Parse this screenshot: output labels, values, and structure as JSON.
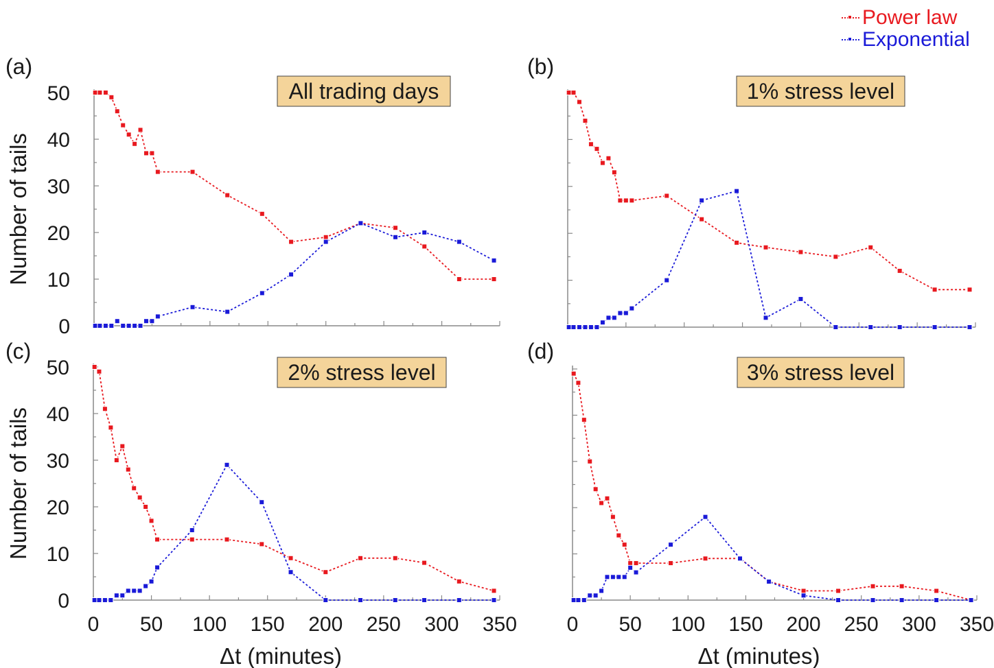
{
  "legend": {
    "items": [
      {
        "label": "Power law",
        "color": "#e8191f"
      },
      {
        "label": "Exponential",
        "color": "#1a1ad8"
      }
    ]
  },
  "colors": {
    "power": "#e8191f",
    "exponential": "#1a1ad8",
    "box_fill": "#f4d49a",
    "box_border": "#444444"
  },
  "chart_data": [
    {
      "type": "line",
      "panel_label": "(a)",
      "title": "All trading days",
      "xlabel": "",
      "ylabel": "Number of tails",
      "xlim": [
        0,
        350
      ],
      "ylim": [
        0,
        50
      ],
      "xticks": [
        0,
        50,
        100,
        150,
        200,
        250,
        300,
        350
      ],
      "show_xtick_labels": false,
      "yticks": [
        0,
        10,
        20,
        30,
        40,
        50
      ],
      "show_ytick_labels": true,
      "series": [
        {
          "name": "Power law",
          "color": "#e8191f",
          "x": [
            1,
            5,
            10,
            15,
            20,
            25,
            30,
            35,
            40,
            45,
            50,
            55,
            85,
            115,
            145,
            170,
            200,
            230,
            260,
            285,
            315,
            345
          ],
          "y": [
            50,
            50,
            50,
            49,
            46,
            43,
            41,
            39,
            42,
            37,
            37,
            33,
            33,
            28,
            24,
            18,
            19,
            22,
            21,
            17,
            10,
            10
          ]
        },
        {
          "name": "Exponential",
          "color": "#1a1ad8",
          "x": [
            1,
            5,
            10,
            15,
            20,
            25,
            30,
            35,
            40,
            45,
            50,
            55,
            85,
            115,
            145,
            170,
            200,
            230,
            260,
            285,
            315,
            345
          ],
          "y": [
            0,
            0,
            0,
            0,
            1,
            0,
            0,
            0,
            0,
            1,
            1,
            2,
            4,
            3,
            7,
            11,
            18,
            22,
            19,
            20,
            18,
            14
          ]
        }
      ]
    },
    {
      "type": "line",
      "panel_label": "(b)",
      "title": "1% stress level",
      "xlabel": "",
      "ylabel": "",
      "xlim": [
        0,
        350
      ],
      "ylim": [
        0,
        50
      ],
      "xticks": [
        0,
        50,
        100,
        150,
        200,
        250,
        300,
        350
      ],
      "show_xtick_labels": false,
      "yticks": [
        0,
        10,
        20,
        30,
        40,
        50
      ],
      "show_ytick_labels": false,
      "series": [
        {
          "name": "Power law",
          "color": "#e8191f",
          "x": [
            1,
            5,
            10,
            15,
            20,
            25,
            30,
            35,
            40,
            45,
            50,
            55,
            85,
            115,
            145,
            170,
            200,
            230,
            260,
            285,
            315,
            345
          ],
          "y": [
            50,
            50,
            48,
            44,
            39,
            38,
            35,
            36,
            33,
            27,
            27,
            27,
            28,
            23,
            18,
            17,
            16,
            15,
            17,
            12,
            8,
            8
          ]
        },
        {
          "name": "Exponential",
          "color": "#1a1ad8",
          "x": [
            1,
            5,
            10,
            15,
            20,
            25,
            30,
            35,
            40,
            45,
            50,
            55,
            85,
            115,
            145,
            170,
            200,
            230,
            260,
            285,
            315,
            345
          ],
          "y": [
            0,
            0,
            0,
            0,
            0,
            0,
            1,
            2,
            2,
            3,
            3,
            4,
            10,
            27,
            29,
            2,
            6,
            0,
            0,
            0,
            0,
            0
          ]
        }
      ]
    },
    {
      "type": "line",
      "panel_label": "(c)",
      "title": "2% stress level",
      "xlabel": "Δt (minutes)",
      "ylabel": "Number of tails",
      "xlim": [
        0,
        350
      ],
      "ylim": [
        0,
        50
      ],
      "xticks": [
        0,
        50,
        100,
        150,
        200,
        250,
        300,
        350
      ],
      "show_xtick_labels": true,
      "yticks": [
        0,
        10,
        20,
        30,
        40,
        50
      ],
      "show_ytick_labels": true,
      "series": [
        {
          "name": "Power law",
          "color": "#e8191f",
          "x": [
            1,
            5,
            10,
            15,
            20,
            25,
            30,
            35,
            40,
            45,
            50,
            55,
            85,
            115,
            145,
            170,
            200,
            230,
            260,
            285,
            315,
            345
          ],
          "y": [
            50,
            49,
            41,
            37,
            30,
            33,
            28,
            24,
            22,
            20,
            17,
            13,
            13,
            13,
            12,
            9,
            6,
            9,
            9,
            8,
            4,
            2
          ]
        },
        {
          "name": "Exponential",
          "color": "#1a1ad8",
          "x": [
            1,
            5,
            10,
            15,
            20,
            25,
            30,
            35,
            40,
            45,
            50,
            55,
            85,
            115,
            145,
            170,
            200,
            230,
            260,
            285,
            315,
            345
          ],
          "y": [
            0,
            0,
            0,
            0,
            1,
            1,
            2,
            2,
            2,
            3,
            4,
            7,
            15,
            29,
            21,
            6,
            0,
            0,
            0,
            0,
            0,
            0
          ]
        }
      ]
    },
    {
      "type": "line",
      "panel_label": "(d)",
      "title": "3% stress level",
      "xlabel": "Δt (minutes)",
      "ylabel": "",
      "xlim": [
        0,
        350
      ],
      "ylim": [
        0,
        50
      ],
      "xticks": [
        0,
        50,
        100,
        150,
        200,
        250,
        300,
        350
      ],
      "show_xtick_labels": true,
      "yticks": [
        0,
        10,
        20,
        30,
        40,
        50
      ],
      "show_ytick_labels": false,
      "series": [
        {
          "name": "Power law",
          "color": "#e8191f",
          "x": [
            1,
            5,
            10,
            15,
            20,
            25,
            30,
            35,
            40,
            45,
            50,
            55,
            85,
            115,
            145,
            170,
            200,
            230,
            260,
            285,
            315,
            345
          ],
          "y": [
            49,
            47,
            39,
            30,
            24,
            21,
            22,
            18,
            14,
            12,
            8,
            8,
            8,
            9,
            9,
            4,
            2,
            2,
            3,
            3,
            2,
            0
          ]
        },
        {
          "name": "Exponential",
          "color": "#1a1ad8",
          "x": [
            1,
            5,
            10,
            15,
            20,
            25,
            30,
            35,
            40,
            45,
            50,
            55,
            85,
            115,
            145,
            170,
            200,
            230,
            260,
            285,
            315,
            345
          ],
          "y": [
            0,
            0,
            0,
            1,
            1,
            2,
            5,
            5,
            5,
            5,
            7,
            6,
            12,
            18,
            9,
            4,
            1,
            0,
            0,
            0,
            0,
            0
          ]
        }
      ]
    }
  ]
}
